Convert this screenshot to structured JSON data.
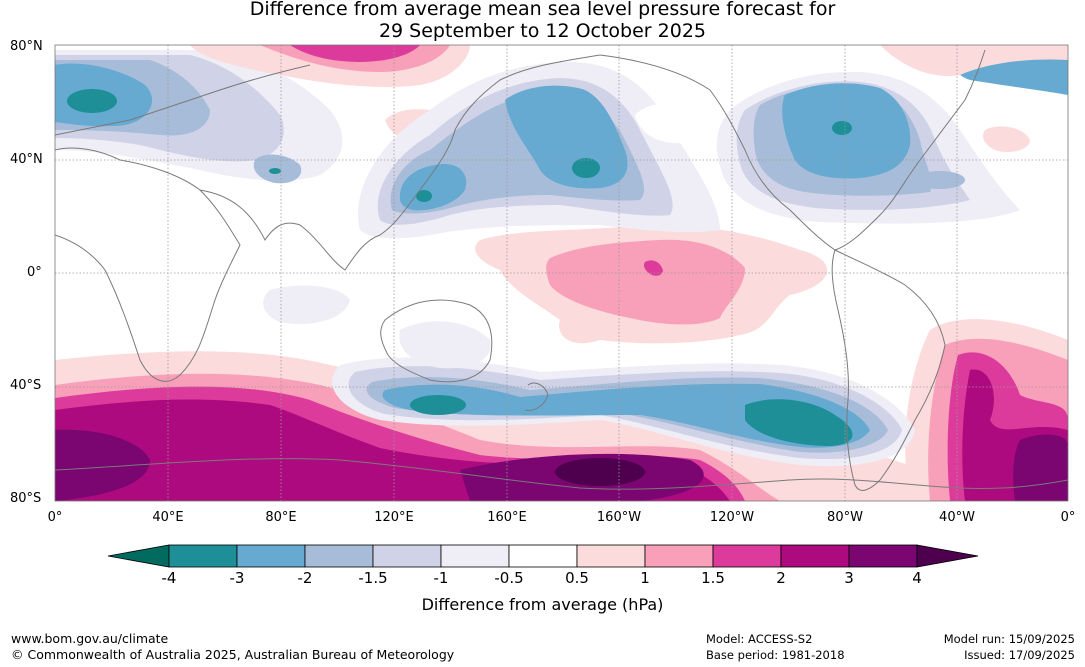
{
  "title_line1": "Difference from average mean sea level pressure forecast for",
  "title_line2": "29 September to 12 October 2025",
  "lat_labels": [
    "80°N",
    "40°N",
    "0°",
    "40°S",
    "80°S"
  ],
  "lon_labels": [
    "0°",
    "40°E",
    "80°E",
    "120°E",
    "160°E",
    "160°W",
    "120°W",
    "80°W",
    "40°W",
    "0°"
  ],
  "colorbar": {
    "title": "Difference from average (hPa)",
    "tick_labels": [
      "-4",
      "-3",
      "-2",
      "-1.5",
      "-1",
      "-0.5",
      "0.5",
      "1",
      "1.5",
      "2",
      "3",
      "4"
    ],
    "colors": {
      "below_-4": "#006b5e",
      "-4_-3": "#1e8f97",
      "-3_-2": "#66aad2",
      "-2_-1.5": "#a7bcd9",
      "-1.5_-1": "#d0d2e7",
      "-1_-0.5": "#efedf5",
      "-0.5_0.5": "#ffffff",
      "0.5_1": "#fcdbdc",
      "1_1.5": "#f89fb9",
      "1.5_2": "#dc3b9b",
      "2_3": "#ae0a7f",
      "3_4": "#7b0571",
      "above_4": "#4e004e"
    }
  },
  "footer": {
    "website": "www.bom.gov.au/climate",
    "copyright": "© Commonwealth of Australia 2025, Australian Bureau of Meteorology",
    "model": "Model: ACCESS-S2",
    "base_period": "Base period: 1981-2018",
    "model_run": "Model run: 15/09/2025",
    "issued": "Issued: 17/09/2025"
  }
}
